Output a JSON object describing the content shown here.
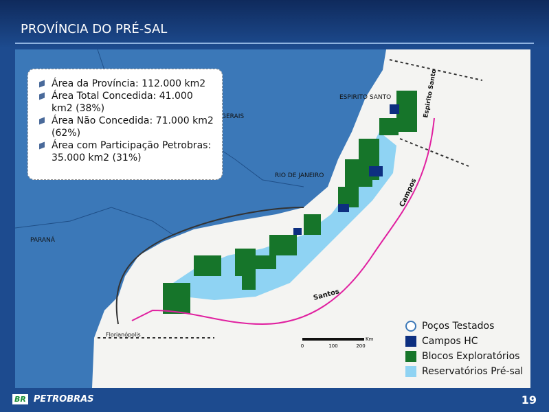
{
  "header": {
    "title": "PROVÍNCIA DO PRÉ-SAL"
  },
  "info_box": {
    "bullets": [
      "Área da Província: 112.000 km2",
      "Área Total Concedida: 41.000 km2 (38%)",
      "Área Não Concedida: 71.000 km2 (62%)",
      "Área com Participação Petrobras: 35.000 km2 (31%)"
    ]
  },
  "map": {
    "labels": [
      "ESPIRITO SANTO",
      "GERAIS",
      "RIO DE JANEIRO",
      "PARANÁ",
      "Campos",
      "Santos",
      "Espirito Santo",
      "Florianópolis"
    ],
    "scale": {
      "ticks": [
        "0",
        "100",
        "200"
      ],
      "unit": "Km"
    }
  },
  "legend": {
    "items": [
      "Poços Testados",
      "Campos HC",
      "Blocos Exploratórios",
      "Reservatórios Pré-sal"
    ]
  },
  "footer": {
    "logo": "PETROBRAS",
    "logo_mark": "BR",
    "page": "19"
  }
}
